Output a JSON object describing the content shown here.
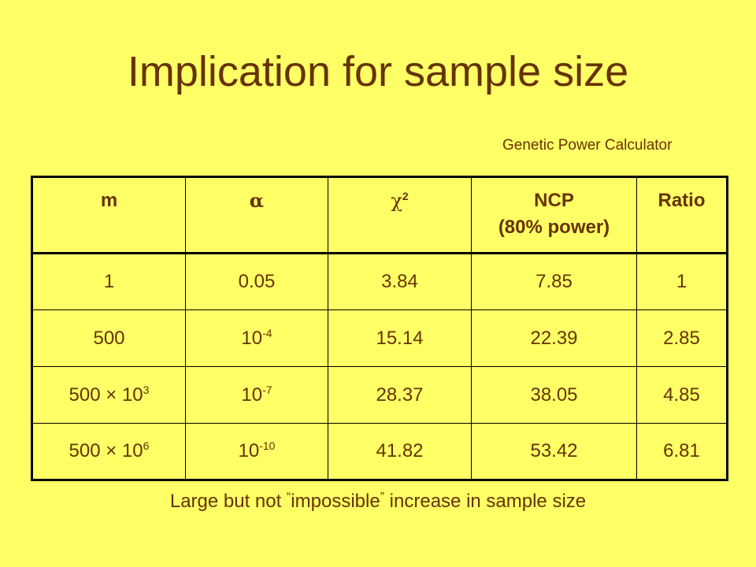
{
  "slide": {
    "title": "Implication for sample size",
    "credit": "Genetic Power Calculator",
    "footer": {
      "before": "Large but not ",
      "open_quote": "“",
      "emphasis": "impossible",
      "close_quote": "”",
      "after": " increase in sample size"
    }
  },
  "table": {
    "headers": {
      "m": "m",
      "alpha": "α",
      "chi_base": "χ",
      "chi_sup": "2",
      "ncp_line1": "NCP",
      "ncp_line2": "(80% power)",
      "ratio": "Ratio"
    },
    "rows": [
      {
        "m_base": "1",
        "m_exp": "",
        "alpha_base": "0.05",
        "alpha_exp": "",
        "chi2": "3.84",
        "ncp": "7.85",
        "ratio": "1"
      },
      {
        "m_base": "500",
        "m_exp": "",
        "alpha_base": "10",
        "alpha_exp": "-4",
        "chi2": "15.14",
        "ncp": "22.39",
        "ratio": "2.85"
      },
      {
        "m_base": "500 × 10",
        "m_exp": "3",
        "alpha_base": "10",
        "alpha_exp": "-7",
        "chi2": "28.37",
        "ncp": "38.05",
        "ratio": "4.85"
      },
      {
        "m_base": "500 × 10",
        "m_exp": "6",
        "alpha_base": "10",
        "alpha_exp": "-10",
        "chi2": "41.82",
        "ncp": "53.42",
        "ratio": "6.81"
      }
    ]
  },
  "colors": {
    "background": "#ffff66",
    "text": "#663300",
    "border": "#000000"
  }
}
